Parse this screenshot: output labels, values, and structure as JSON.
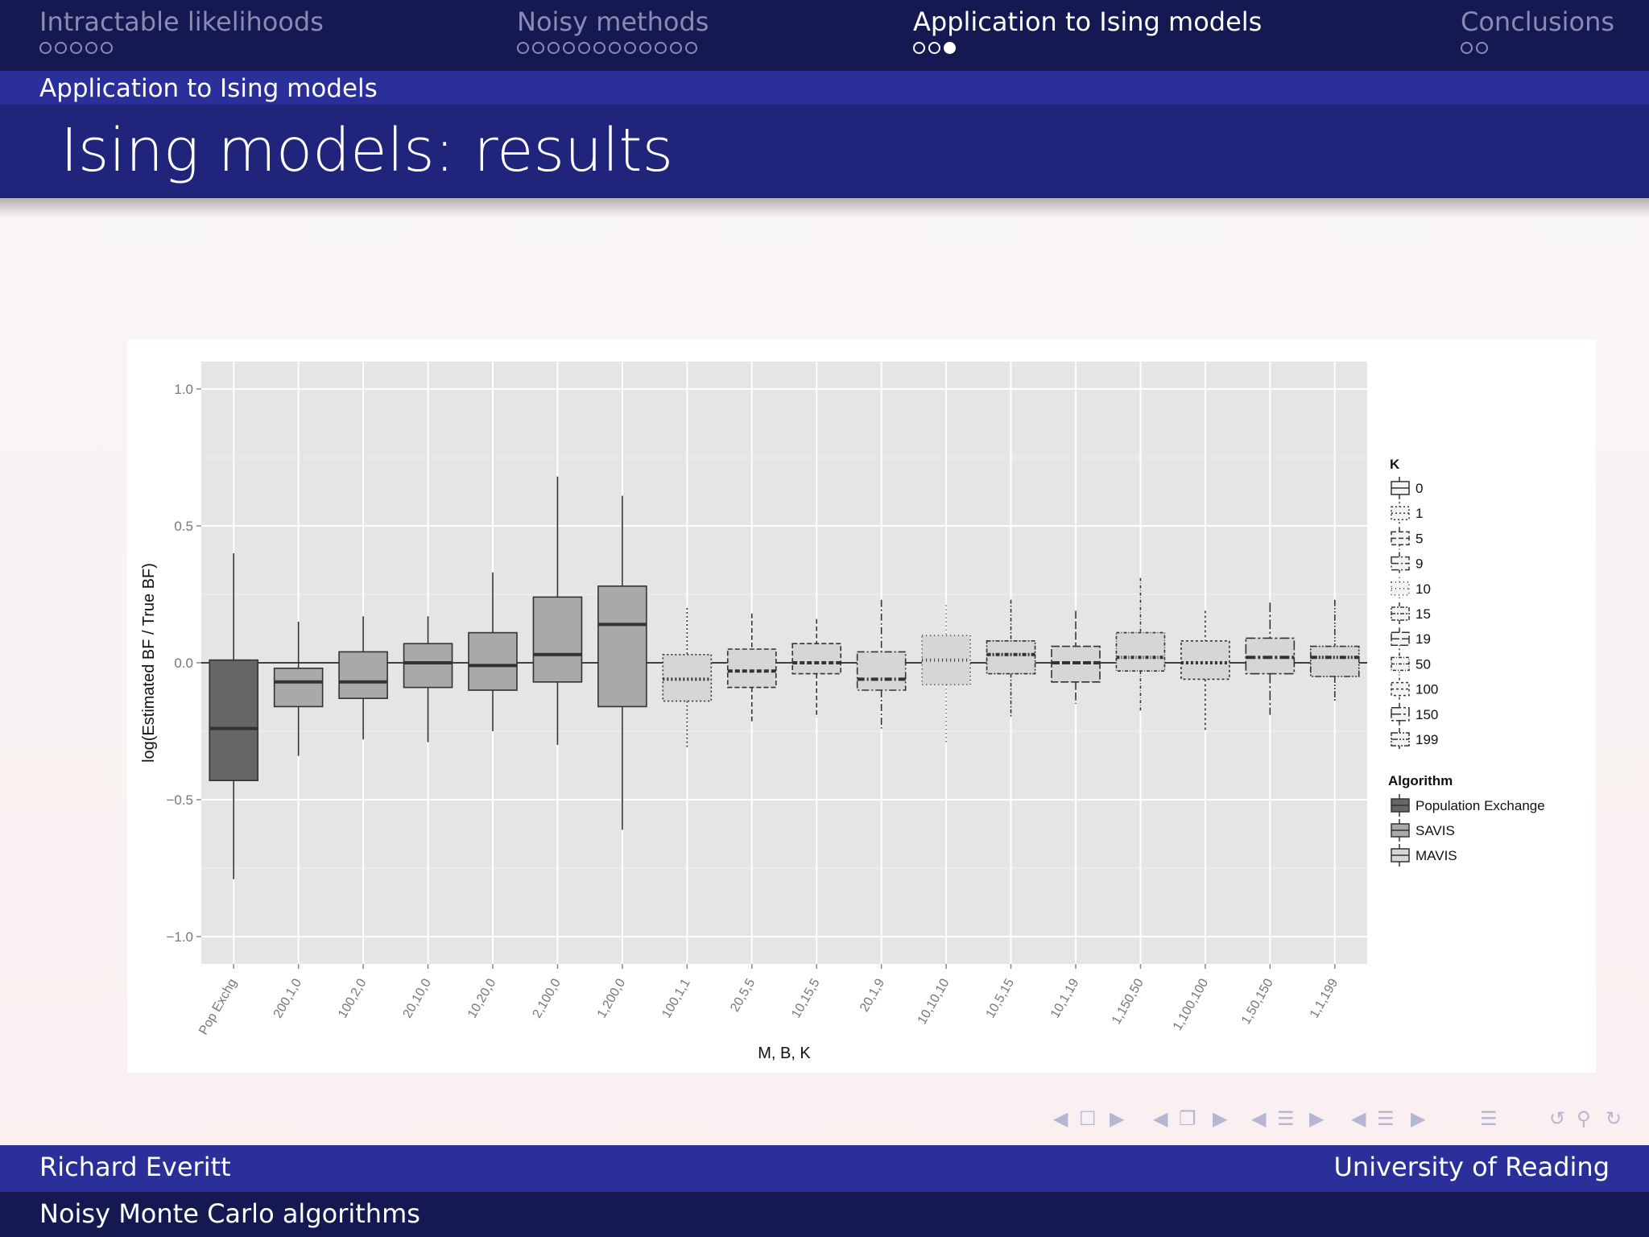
{
  "nav": {
    "sections": [
      {
        "title": "Intractable likelihoods",
        "dots": 5,
        "filled": 0
      },
      {
        "title": "Noisy methods",
        "dots": 12,
        "filled": 0
      },
      {
        "title": "Application to Ising models",
        "dots": 3,
        "filled": 1
      },
      {
        "title": "Conclusions",
        "dots": 2,
        "filled": 0
      }
    ],
    "subsection": "Application to Ising models"
  },
  "slide": {
    "title": "Ising models:  results"
  },
  "footer": {
    "author": "Richard Everitt",
    "institution": "University of Reading",
    "talk_title": "Noisy Monte Carlo algorithms"
  },
  "colors": {
    "pop": "#666666",
    "savis": "#a9a9ab",
    "mavis": "#d6d6d8",
    "panel": "#e5e4e6",
    "nav_bg": "#151952",
    "bar": "#2a2f99"
  },
  "nav_icons": [
    "arrow-left-icon",
    "frame-icon",
    "arrow-right-icon",
    "arrow-left-icon",
    "subsection-icon",
    "arrow-right-icon",
    "arrow-left-icon",
    "section-icon",
    "arrow-right-icon",
    "arrow-left-icon",
    "list-icon",
    "arrow-right-icon",
    "align-icon",
    "undo-icon",
    "search-icon",
    "redo-icon"
  ],
  "chart_data": {
    "type": "box",
    "xlabel": "M, B, K",
    "ylabel": "log(Estimated BF / True BF)",
    "ylim": [
      -1.1,
      1.1
    ],
    "yticks": [
      1.0,
      0.5,
      0.0,
      -0.5,
      -1.0
    ],
    "ytick_labels": [
      "1.0",
      "0.5",
      "0.0",
      "−0.5",
      "−1.0"
    ],
    "reference_line": 0,
    "legend": {
      "K_title": "K",
      "K_values": [
        "0",
        "1",
        "5",
        "9",
        "10",
        "15",
        "19",
        "50",
        "100",
        "150",
        "199"
      ],
      "algorithm_title": "Algorithm",
      "algorithms": [
        "Population Exchange",
        "SAVIS",
        "MAVIS"
      ]
    },
    "boxes": [
      {
        "label": "Pop Exchg",
        "alg": "Population Exchange",
        "K": "0",
        "whisker_low": -0.79,
        "q1": -0.43,
        "median": -0.24,
        "q3": 0.01,
        "whisker_high": 0.4
      },
      {
        "label": "200,1,0",
        "alg": "SAVIS",
        "K": "0",
        "whisker_low": -0.34,
        "q1": -0.16,
        "median": -0.07,
        "q3": -0.02,
        "whisker_high": 0.15
      },
      {
        "label": "100,2,0",
        "alg": "SAVIS",
        "K": "0",
        "whisker_low": -0.28,
        "q1": -0.13,
        "median": -0.07,
        "q3": 0.04,
        "whisker_high": 0.17
      },
      {
        "label": "20,10,0",
        "alg": "SAVIS",
        "K": "0",
        "whisker_low": -0.29,
        "q1": -0.09,
        "median": 0.0,
        "q3": 0.07,
        "whisker_high": 0.17
      },
      {
        "label": "10,20,0",
        "alg": "SAVIS",
        "K": "0",
        "whisker_low": -0.25,
        "q1": -0.1,
        "median": -0.01,
        "q3": 0.11,
        "whisker_high": 0.33
      },
      {
        "label": "2,100,0",
        "alg": "SAVIS",
        "K": "0",
        "whisker_low": -0.3,
        "q1": -0.07,
        "median": 0.03,
        "q3": 0.24,
        "whisker_high": 0.68
      },
      {
        "label": "1,200,0",
        "alg": "SAVIS",
        "K": "0",
        "whisker_low": -0.61,
        "q1": -0.16,
        "median": 0.14,
        "q3": 0.28,
        "whisker_high": 0.61
      },
      {
        "label": "100,1,1",
        "alg": "MAVIS",
        "K": "1",
        "whisker_low": -0.31,
        "q1": -0.14,
        "median": -0.06,
        "q3": 0.03,
        "whisker_high": 0.2
      },
      {
        "label": "20,5,5",
        "alg": "MAVIS",
        "K": "5",
        "whisker_low": -0.22,
        "q1": -0.09,
        "median": -0.03,
        "q3": 0.05,
        "whisker_high": 0.18
      },
      {
        "label": "10,15,5",
        "alg": "MAVIS",
        "K": "5",
        "whisker_low": -0.2,
        "q1": -0.04,
        "median": 0.0,
        "q3": 0.07,
        "whisker_high": 0.16
      },
      {
        "label": "20,1,9",
        "alg": "MAVIS",
        "K": "9",
        "whisker_low": -0.24,
        "q1": -0.1,
        "median": -0.06,
        "q3": 0.04,
        "whisker_high": 0.23
      },
      {
        "label": "10,10,10",
        "alg": "MAVIS",
        "K": "10",
        "whisker_low": -0.29,
        "q1": -0.08,
        "median": 0.01,
        "q3": 0.1,
        "whisker_high": 0.21
      },
      {
        "label": "10,5,15",
        "alg": "MAVIS",
        "K": "15",
        "whisker_low": -0.2,
        "q1": -0.04,
        "median": 0.03,
        "q3": 0.08,
        "whisker_high": 0.23
      },
      {
        "label": "10,1,19",
        "alg": "MAVIS",
        "K": "19",
        "whisker_low": -0.15,
        "q1": -0.07,
        "median": 0.0,
        "q3": 0.06,
        "whisker_high": 0.19
      },
      {
        "label": "1,150,50",
        "alg": "MAVIS",
        "K": "50",
        "whisker_low": -0.18,
        "q1": -0.03,
        "median": 0.02,
        "q3": 0.11,
        "whisker_high": 0.31
      },
      {
        "label": "1,100,100",
        "alg": "MAVIS",
        "K": "100",
        "whisker_low": -0.25,
        "q1": -0.06,
        "median": 0.0,
        "q3": 0.08,
        "whisker_high": 0.19
      },
      {
        "label": "1,50,150",
        "alg": "MAVIS",
        "K": "150",
        "whisker_low": -0.19,
        "q1": -0.04,
        "median": 0.02,
        "q3": 0.09,
        "whisker_high": 0.22
      },
      {
        "label": "1,1,199",
        "alg": "MAVIS",
        "K": "199",
        "whisker_low": -0.14,
        "q1": -0.05,
        "median": 0.02,
        "q3": 0.06,
        "whisker_high": 0.23
      }
    ]
  }
}
